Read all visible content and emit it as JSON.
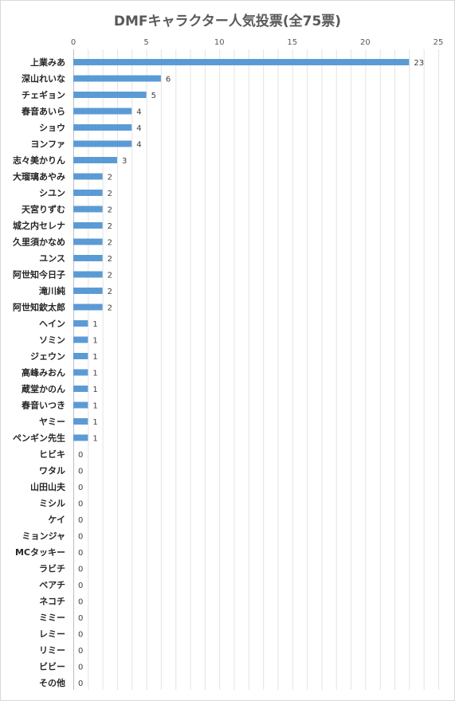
{
  "chart_data": {
    "type": "bar",
    "orientation": "horizontal",
    "title": "DMFキャラクター人気投票(全75票)",
    "xlim": [
      0,
      25
    ],
    "x_ticks": [
      "0",
      "5",
      "10",
      "15",
      "20",
      "25"
    ],
    "x_axis_position": "top",
    "grid": true,
    "bar_color": "#5b9bd5",
    "categories": [
      "上業みあ",
      "深山れいな",
      "チェギョン",
      "春音あいら",
      "ショウ",
      "ヨンファ",
      "志々美かりん",
      "大瑠璃あやみ",
      "シユン",
      "天宮りずむ",
      "城之内セレナ",
      "久里須かなめ",
      "ユンス",
      "阿世知今日子",
      "滝川純",
      "阿世知欽太郎",
      "ヘイン",
      "ソミン",
      "ジェウン",
      "高峰みおん",
      "蔵堂かのん",
      "春音いつき",
      "ヤミー",
      "ペンギン先生",
      "ヒビキ",
      "ワタル",
      "山田山夫",
      "ミシル",
      "ケイ",
      "ミョンジャ",
      "MCタッキー",
      "ラビチ",
      "ベアチ",
      "ネコチ",
      "ミミー",
      "レミー",
      "リミー",
      "ビビー",
      "その他"
    ],
    "values": [
      23,
      6,
      5,
      4,
      4,
      4,
      3,
      2,
      2,
      2,
      2,
      2,
      2,
      2,
      2,
      2,
      1,
      1,
      1,
      1,
      1,
      1,
      1,
      1,
      0,
      0,
      0,
      0,
      0,
      0,
      0,
      0,
      0,
      0,
      0,
      0,
      0,
      0,
      0
    ]
  }
}
